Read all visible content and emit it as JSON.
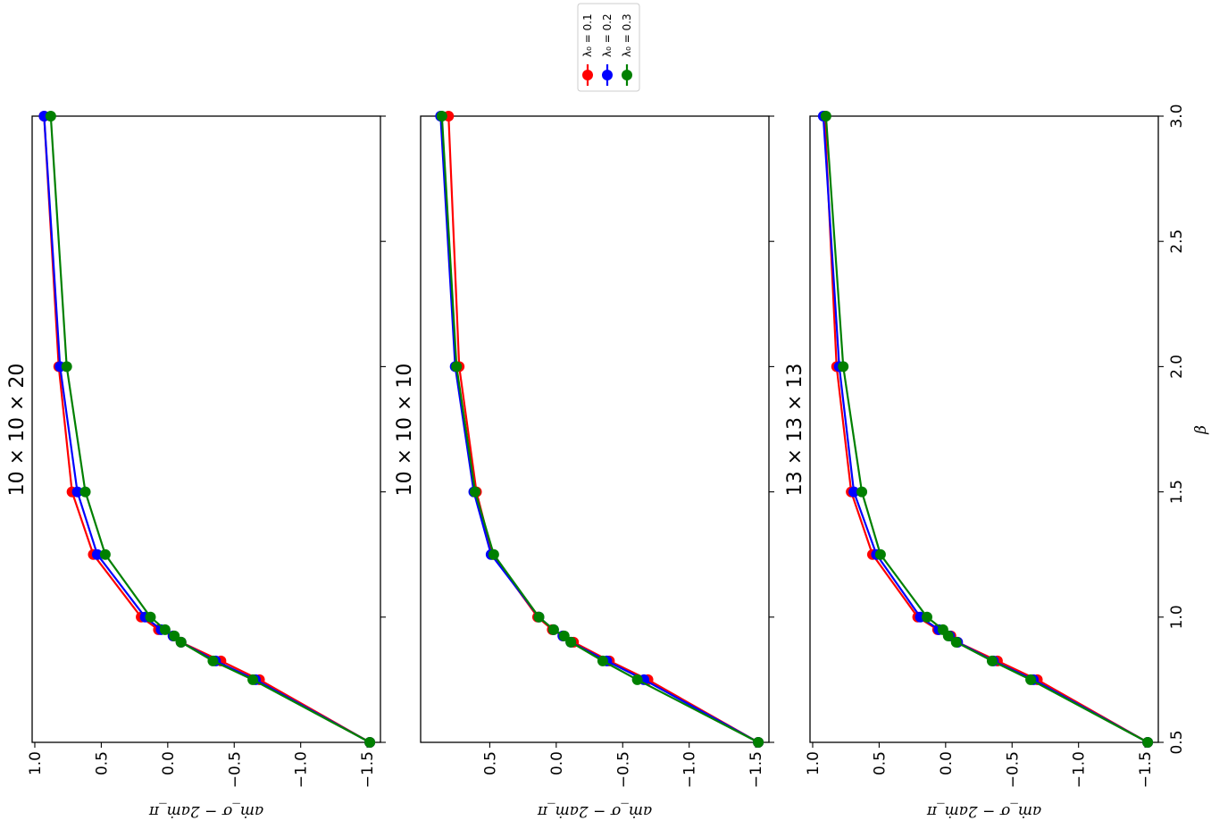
{
  "figure": {
    "legend": {
      "placement": "top-center, outside panels",
      "entries": [
        "λ₀ = 0.1",
        "λ₀ = 0.2",
        "λ₀ = 0.3"
      ]
    },
    "orientation": "rotated 90° clockwise (β axis runs vertically on the right)"
  },
  "chart_data": [
    {
      "type": "line",
      "title": "10 × 10 × 20",
      "xlabel": "β",
      "ylabel": "aṁ_σ − 2aṁ_π",
      "xlim": [
        0.5,
        3.0
      ],
      "ylim": [
        -1.6,
        1.02
      ],
      "x_ticks": [],
      "y_ticks": [
        "1.0",
        "0.5",
        "0.0",
        "−0.5",
        "−1.0",
        "−1.5"
      ],
      "grid": false,
      "x": [
        0.5,
        0.75,
        0.825,
        0.9,
        0.925,
        0.95,
        1.0,
        1.25,
        1.5,
        2.0,
        3.0
      ],
      "series": [
        {
          "name": "λ₀ = 0.1",
          "color": "#ff0000",
          "values": [
            -1.52,
            -0.69,
            -0.4,
            -0.1,
            -0.04,
            0.07,
            0.2,
            0.56,
            0.72,
            0.82,
            0.93
          ]
        },
        {
          "name": "λ₀ = 0.2",
          "color": "#0000ff",
          "values": [
            -1.52,
            -0.66,
            -0.36,
            -0.1,
            -0.04,
            0.05,
            0.17,
            0.53,
            0.68,
            0.81,
            0.93
          ]
        },
        {
          "name": "λ₀ = 0.3",
          "color": "#008000",
          "values": [
            -1.52,
            -0.64,
            -0.34,
            -0.1,
            -0.05,
            0.02,
            0.13,
            0.47,
            0.62,
            0.76,
            0.88
          ]
        }
      ]
    },
    {
      "type": "line",
      "title": "10 × 10 × 10",
      "xlabel": "β",
      "ylabel": "aṁ_σ − 2aṁ_π",
      "xlim": [
        0.5,
        3.0
      ],
      "ylim": [
        -1.6,
        1.02
      ],
      "x_ticks": [],
      "y_ticks": [
        "0.5",
        "0.0",
        "−0.5",
        "−1.0",
        "−1.5"
      ],
      "grid": false,
      "x": [
        0.5,
        0.75,
        0.825,
        0.9,
        0.925,
        0.95,
        1.0,
        1.25,
        1.5,
        2.0,
        3.0
      ],
      "series": [
        {
          "name": "λ₀ = 0.1",
          "color": "#ff0000",
          "values": [
            -1.52,
            -0.69,
            -0.4,
            -0.13,
            -0.05,
            0.03,
            0.14,
            0.48,
            0.6,
            0.73,
            0.81
          ]
        },
        {
          "name": "λ₀ = 0.2",
          "color": "#0000ff",
          "values": [
            -1.52,
            -0.66,
            -0.38,
            -0.11,
            -0.05,
            0.02,
            0.13,
            0.49,
            0.62,
            0.76,
            0.87
          ]
        },
        {
          "name": "λ₀ = 0.3",
          "color": "#008000",
          "values": [
            -1.52,
            -0.61,
            -0.35,
            -0.11,
            -0.06,
            0.02,
            0.13,
            0.47,
            0.61,
            0.75,
            0.86
          ]
        }
      ]
    },
    {
      "type": "line",
      "title": "13 × 13 × 13",
      "xlabel": "β",
      "ylabel": "aṁ_σ − 2aṁ_π",
      "xlim": [
        0.5,
        3.0
      ],
      "ylim": [
        -1.6,
        1.02
      ],
      "x_ticks": [
        "0.5",
        "1.0",
        "1.5",
        "2.0",
        "2.5",
        "3.0"
      ],
      "y_ticks": [
        "1.0",
        "0.5",
        "0.0",
        "−0.5",
        "−1.0",
        "−1.5"
      ],
      "grid": false,
      "x": [
        0.5,
        0.75,
        0.825,
        0.9,
        0.925,
        0.95,
        1.0,
        1.25,
        1.5,
        2.0,
        3.0
      ],
      "series": [
        {
          "name": "λ₀ = 0.1",
          "color": "#ff0000",
          "values": [
            -1.52,
            -0.69,
            -0.39,
            -0.09,
            -0.04,
            0.06,
            0.21,
            0.55,
            0.71,
            0.82,
            0.91
          ]
        },
        {
          "name": "λ₀ = 0.2",
          "color": "#0000ff",
          "values": [
            -1.52,
            -0.66,
            -0.36,
            -0.09,
            -0.03,
            0.05,
            0.19,
            0.52,
            0.69,
            0.8,
            0.92
          ]
        },
        {
          "name": "λ₀ = 0.3",
          "color": "#008000",
          "values": [
            -1.52,
            -0.64,
            -0.35,
            -0.08,
            -0.02,
            0.02,
            0.14,
            0.49,
            0.63,
            0.77,
            0.9
          ]
        }
      ]
    }
  ]
}
